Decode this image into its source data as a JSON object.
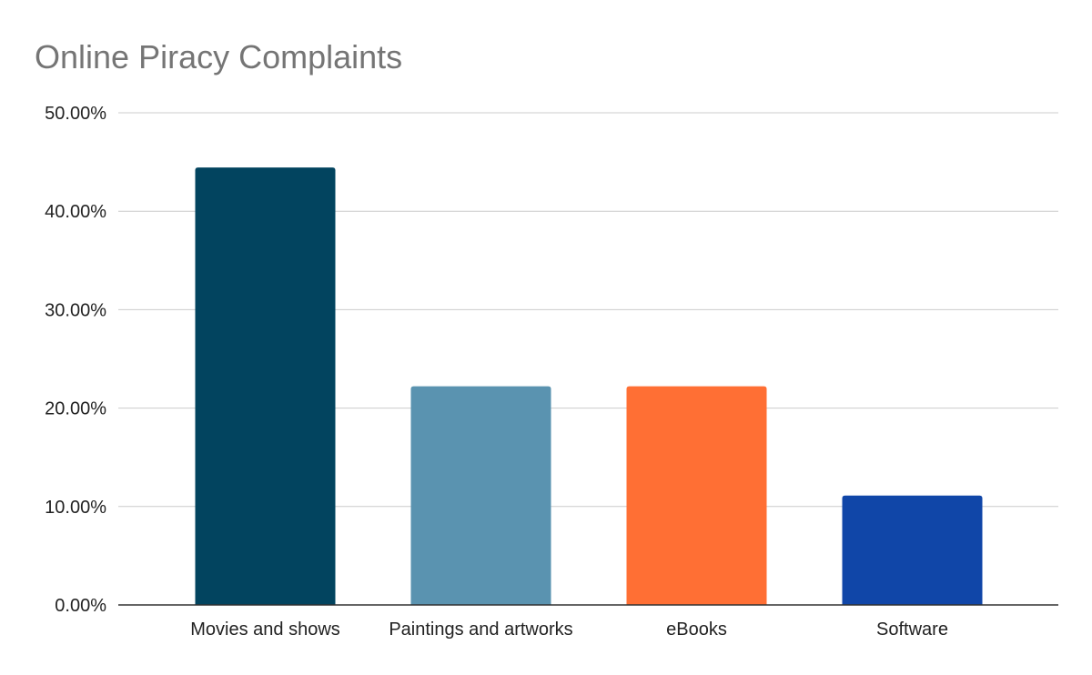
{
  "chart_data": {
    "type": "bar",
    "title": "Online Piracy Complaints",
    "xlabel": "",
    "ylabel": "",
    "categories": [
      "Movies and shows",
      "Paintings and artworks",
      "eBooks",
      "Software"
    ],
    "values": [
      44.44,
      22.22,
      22.22,
      11.11
    ],
    "colors": [
      "#02445F",
      "#5A93B0",
      "#FF6F34",
      "#1046A8"
    ],
    "ylim": [
      0,
      50
    ],
    "yticks": [
      0,
      10,
      20,
      30,
      40,
      50
    ],
    "ytick_labels": [
      "0.00%",
      "10.00%",
      "20.00%",
      "30.00%",
      "40.00%",
      "50.00%"
    ],
    "grid": true,
    "legend": "none"
  }
}
